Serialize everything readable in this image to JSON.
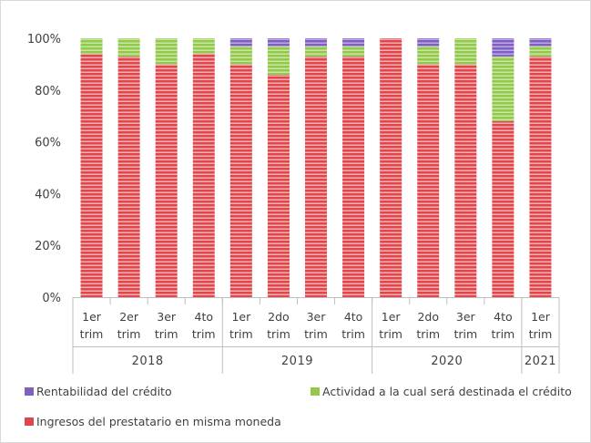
{
  "chart_data": {
    "type": "bar",
    "stacked": true,
    "percent": true,
    "title": "",
    "xlabel": "",
    "ylabel": "",
    "ylim": [
      0,
      100
    ],
    "yticks": [
      "0%",
      "20%",
      "40%",
      "60%",
      "80%",
      "100%"
    ],
    "categories": [
      {
        "line1": "1er",
        "line2": "trim"
      },
      {
        "line1": "2er",
        "line2": "trim"
      },
      {
        "line1": "3er",
        "line2": "trim"
      },
      {
        "line1": "4to",
        "line2": "trim"
      },
      {
        "line1": "1er",
        "line2": "trim"
      },
      {
        "line1": "2do",
        "line2": "trim"
      },
      {
        "line1": "3er",
        "line2": "trim"
      },
      {
        "line1": "4to",
        "line2": "trim"
      },
      {
        "line1": "1er",
        "line2": "trim"
      },
      {
        "line1": "2do",
        "line2": "trim"
      },
      {
        "line1": "3er",
        "line2": "trim"
      },
      {
        "line1": "4to",
        "line2": "trim"
      },
      {
        "line1": "1er",
        "line2": "trim"
      }
    ],
    "groups": [
      {
        "label": "2018",
        "count": 4
      },
      {
        "label": "2019",
        "count": 4
      },
      {
        "label": "2020",
        "count": 4
      },
      {
        "label": "2021",
        "count": 1
      }
    ],
    "series": [
      {
        "name": "Ingresos del prestatario en misma moneda",
        "color": "#e0474c",
        "stripe": "#f7c8c9",
        "values": [
          94,
          93,
          90,
          94,
          90,
          86,
          93,
          93,
          100,
          90,
          90,
          68,
          93
        ]
      },
      {
        "name": "Actividad a la cual será destinada el crédito",
        "color": "#92c94c",
        "stripe": "#d6ecb8",
        "values": [
          6,
          7,
          10,
          6,
          7,
          11,
          4,
          4,
          0,
          7,
          10,
          25,
          4
        ]
      },
      {
        "name": "Rentabilidad del crédito",
        "color": "#7f5fc4",
        "stripe": "#cbbde9",
        "values": [
          0,
          0,
          0,
          0,
          3,
          3,
          3,
          3,
          0,
          3,
          0,
          7,
          3
        ]
      }
    ],
    "legend_placement": "bottom",
    "grid": false
  },
  "legend": {
    "rentabilidad": "Rentabilidad del crédito",
    "actividad": "Actividad a la cual será destinada el crédito",
    "ingresos": "Ingresos del prestatario en misma moneda"
  }
}
